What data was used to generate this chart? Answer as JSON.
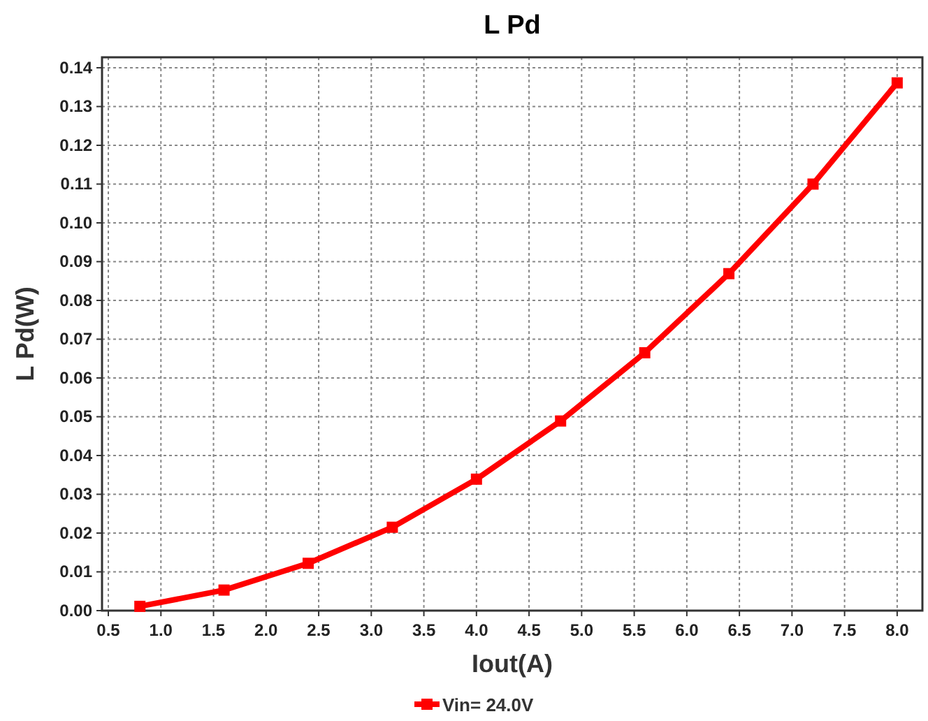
{
  "chart_data": {
    "type": "line",
    "title": "L Pd",
    "xlabel": "Iout(A)",
    "ylabel": "L Pd(W)",
    "x": [
      0.8,
      1.6,
      2.4,
      3.2,
      4.0,
      4.8,
      5.6,
      6.4,
      7.2,
      8.0
    ],
    "series": [
      {
        "name": "Vin= 24.0V",
        "color": "#ff0000",
        "values": [
          0.0011,
          0.0053,
          0.0122,
          0.0215,
          0.0339,
          0.0489,
          0.0665,
          0.0869,
          0.11,
          0.1361
        ]
      }
    ],
    "xlim": [
      0.44,
      8.24
    ],
    "ylim": [
      0,
      0.1427
    ],
    "xticks": [
      {
        "value": 0.5,
        "label": "0.5"
      },
      {
        "value": 1,
        "label": "1.0"
      },
      {
        "value": 1.5,
        "label": "1.5"
      },
      {
        "value": 2,
        "label": "2.0"
      },
      {
        "value": 2.5,
        "label": "2.5"
      },
      {
        "value": 3,
        "label": "3.0"
      },
      {
        "value": 3.5,
        "label": "3.5"
      },
      {
        "value": 4,
        "label": "4.0"
      },
      {
        "value": 4.5,
        "label": "4.5"
      },
      {
        "value": 5,
        "label": "5.0"
      },
      {
        "value": 5.5,
        "label": "5.5"
      },
      {
        "value": 6,
        "label": "6.0"
      },
      {
        "value": 6.5,
        "label": "6.5"
      },
      {
        "value": 7,
        "label": "7.0"
      },
      {
        "value": 7.5,
        "label": "7.5"
      },
      {
        "value": 8,
        "label": "8.0"
      }
    ],
    "yticks": [
      {
        "value": 0,
        "label": "0.00"
      },
      {
        "value": 0.01,
        "label": "0.01"
      },
      {
        "value": 0.02,
        "label": "0.02"
      },
      {
        "value": 0.03,
        "label": "0.03"
      },
      {
        "value": 0.04,
        "label": "0.04"
      },
      {
        "value": 0.05,
        "label": "0.05"
      },
      {
        "value": 0.06,
        "label": "0.06"
      },
      {
        "value": 0.07,
        "label": "0.07"
      },
      {
        "value": 0.08,
        "label": "0.08"
      },
      {
        "value": 0.09,
        "label": "0.09"
      },
      {
        "value": 0.1,
        "label": "0.10"
      },
      {
        "value": 0.11,
        "label": "0.11"
      },
      {
        "value": 0.12,
        "label": "0.12"
      },
      {
        "value": 0.13,
        "label": "0.13"
      },
      {
        "value": 0.14,
        "label": "0.14"
      }
    ],
    "grid": true,
    "legend": "bottom",
    "marker": "square",
    "line_style": "solid"
  }
}
